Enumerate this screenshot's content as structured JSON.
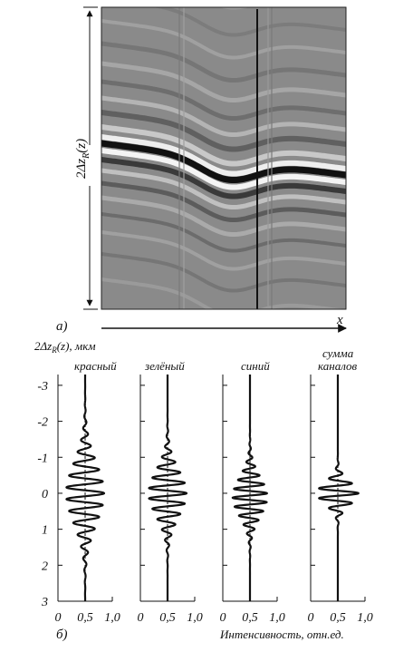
{
  "panel_a": {
    "label": "а)",
    "vertical_dimension_label": "2Δz",
    "vertical_dimension_sub": "R",
    "vertical_dimension_suffix": "(z)",
    "horizontal_axis_label": "x"
  },
  "panel_b": {
    "label": "б)",
    "y_axis_title": "2Δz",
    "y_axis_title_sub": "R",
    "y_axis_title_suffix": "(z), мкм",
    "x_axis_title": "Интенсивность, отн.ед.",
    "channels": [
      {
        "name": "красный"
      },
      {
        "name": "зелёный"
      },
      {
        "name": "синий"
      },
      {
        "name_line1": "сумма",
        "name_line2": "каналов"
      }
    ]
  },
  "chart_data": {
    "type": "line",
    "ylim": [
      -3.3,
      3
    ],
    "xlim": [
      0,
      1.0
    ],
    "y_ticks": [
      -3,
      -2,
      -1,
      0,
      1,
      2,
      3
    ],
    "y_tick_labels": [
      "-3",
      "-2",
      "-1",
      "0",
      "1",
      "2",
      "3"
    ],
    "x_ticks": [
      0,
      0.5,
      1.0
    ],
    "x_tick_labels": [
      "0",
      "0,5",
      "1,0"
    ],
    "series": [
      {
        "name": "красный",
        "baseline": 0.5,
        "max_amplitude": 0.35,
        "envelope_sigma_um": 0.85,
        "envelope_center_um": 0.0,
        "fringe_period_um": 0.33
      },
      {
        "name": "зелёный",
        "baseline": 0.5,
        "max_amplitude": 0.35,
        "envelope_sigma_um": 0.65,
        "envelope_center_um": 0.0,
        "fringe_period_um": 0.29
      },
      {
        "name": "синий",
        "baseline": 0.5,
        "max_amplitude": 0.32,
        "envelope_sigma_um": 0.55,
        "envelope_center_um": 0.1,
        "fringe_period_um": 0.25
      },
      {
        "name": "сумма каналов",
        "baseline": 0.5,
        "max_amplitude": 0.38,
        "envelope_sigma_um": 0.32,
        "envelope_center_um": 0.0,
        "fringe_period_um": 0.28
      }
    ]
  }
}
